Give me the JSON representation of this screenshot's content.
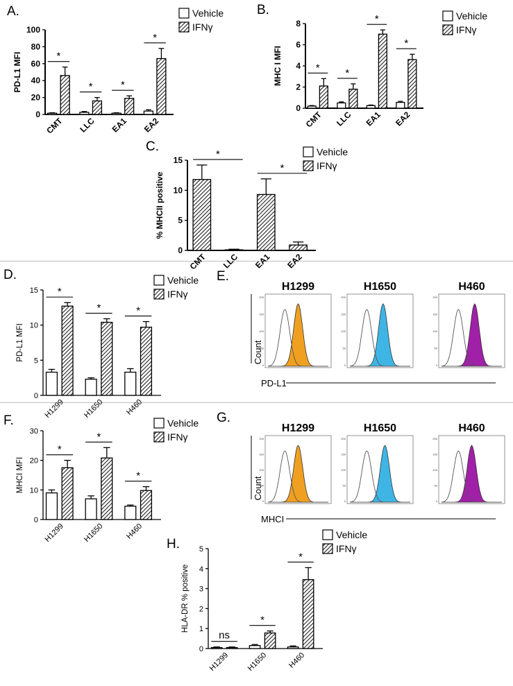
{
  "legend": {
    "vehicle": "Vehicle",
    "ifn": "IFNγ"
  },
  "colors": {
    "orange": "#f0a020",
    "blue": "#3fb5e6",
    "purple": "#a020a8"
  },
  "chart_data": [
    {
      "panel": "A.",
      "type": "bar",
      "style": "bold",
      "categories": [
        "CMT",
        "LLC",
        "EA1",
        "EA2"
      ],
      "series": [
        {
          "name": "Vehicle",
          "values": [
            1.5,
            2.5,
            1.5,
            4
          ],
          "err": [
            0.5,
            1,
            0.5,
            1.5
          ]
        },
        {
          "name": "IFNγ",
          "values": [
            46,
            16,
            19,
            66
          ],
          "err": [
            10,
            4,
            3,
            12
          ]
        }
      ],
      "ylabel": "PD-L1 MFI",
      "ylim": [
        0,
        100
      ],
      "yticks": [
        0,
        20,
        40,
        60,
        80,
        100
      ],
      "sig": [
        {
          "i": 0,
          "label": "*"
        },
        {
          "i": 1,
          "label": "*"
        },
        {
          "i": 2,
          "label": "*"
        },
        {
          "i": 3,
          "label": "*"
        }
      ]
    },
    {
      "panel": "B.",
      "type": "bar",
      "style": "bold",
      "categories": [
        "CMT",
        "LLC",
        "EA1",
        "EA2"
      ],
      "series": [
        {
          "name": "Vehicle",
          "values": [
            0.2,
            0.5,
            0.25,
            0.55
          ],
          "err": [
            0.05,
            0.1,
            0.05,
            0.1
          ]
        },
        {
          "name": "IFNγ",
          "values": [
            2.1,
            1.8,
            7.0,
            4.6
          ],
          "err": [
            0.7,
            0.5,
            0.4,
            0.5
          ]
        }
      ],
      "ylabel": "MHC I MFI",
      "ylim": [
        0,
        8
      ],
      "yticks": [
        0,
        2,
        4,
        6,
        8
      ],
      "sig": [
        {
          "i": 0,
          "label": "*"
        },
        {
          "i": 1,
          "label": "*"
        },
        {
          "i": 2,
          "label": "*"
        },
        {
          "i": 3,
          "label": "*"
        }
      ]
    },
    {
      "panel": "C.",
      "type": "bar",
      "style": "bold",
      "vehicle_only_hatch": true,
      "categories": [
        "CMT",
        "LLC",
        "EA1",
        "EA2"
      ],
      "series": [
        {
          "name": "IFNγ",
          "values": [
            11.8,
            0.1,
            9.3,
            0.9
          ],
          "err": [
            2.4,
            0.1,
            2.6,
            0.5
          ]
        }
      ],
      "ylabel": "% MHCII positive",
      "ylim": [
        0,
        15
      ],
      "yticks": [
        0,
        5,
        10,
        15
      ],
      "sig_pairs": [
        {
          "a": 0,
          "b": 1,
          "label": "*"
        },
        {
          "a": 2,
          "b": 3,
          "label": "*"
        }
      ]
    },
    {
      "panel": "D.",
      "type": "bar",
      "style": "plain",
      "categories": [
        "H1299",
        "H1650",
        "H460"
      ],
      "series": [
        {
          "name": "Vehicle",
          "values": [
            3.3,
            2.3,
            3.3
          ],
          "err": [
            0.4,
            0.2,
            0.5
          ]
        },
        {
          "name": "IFNγ",
          "values": [
            12.7,
            10.4,
            9.7
          ],
          "err": [
            0.5,
            0.5,
            0.8
          ]
        }
      ],
      "ylabel": "PD-L1 MFI",
      "ylim": [
        0,
        15
      ],
      "yticks": [
        0,
        5,
        10,
        15
      ],
      "sig": [
        {
          "i": 0,
          "label": "*"
        },
        {
          "i": 1,
          "label": "*"
        },
        {
          "i": 2,
          "label": "*"
        }
      ]
    },
    {
      "panel": "F.",
      "type": "bar",
      "style": "plain",
      "categories": [
        "H1299",
        "H1650",
        "H460"
      ],
      "series": [
        {
          "name": "Vehicle",
          "values": [
            9,
            7,
            4.5
          ],
          "err": [
            1,
            1,
            0.4
          ]
        },
        {
          "name": "IFNγ",
          "values": [
            17.5,
            20.8,
            9.8
          ],
          "err": [
            2.5,
            3.5,
            1.3
          ]
        }
      ],
      "ylabel": "MHCI MFI",
      "ylim": [
        0,
        30
      ],
      "yticks": [
        0,
        10,
        20,
        30
      ],
      "sig": [
        {
          "i": 0,
          "label": "*"
        },
        {
          "i": 1,
          "label": "*"
        },
        {
          "i": 2,
          "label": "*"
        }
      ]
    },
    {
      "panel": "H.",
      "type": "bar",
      "style": "plain",
      "categories": [
        "H1299",
        "H1650",
        "H460"
      ],
      "series": [
        {
          "name": "Vehicle",
          "values": [
            0.05,
            0.15,
            0.08
          ],
          "err": [
            0.03,
            0.05,
            0.05
          ]
        },
        {
          "name": "IFNγ",
          "values": [
            0.05,
            0.78,
            3.45
          ],
          "err": [
            0.03,
            0.1,
            0.6
          ]
        }
      ],
      "ylabel": "HLA-DR % positive",
      "ylim": [
        0,
        5
      ],
      "yticks": [
        0,
        1,
        2,
        3,
        4,
        5
      ],
      "sig": [
        {
          "i": 0,
          "label": "ns"
        },
        {
          "i": 1,
          "label": "*"
        },
        {
          "i": 2,
          "label": "*"
        }
      ]
    }
  ],
  "flow": [
    {
      "panel": "E.",
      "xlabel": "PD-L1",
      "ylabel": "Count",
      "cells": [
        {
          "name": "H1299",
          "color": "orange"
        },
        {
          "name": "H1650",
          "color": "blue"
        },
        {
          "name": "H460",
          "color": "purple"
        }
      ]
    },
    {
      "panel": "G.",
      "xlabel": "MHCI",
      "ylabel": "Count",
      "cells": [
        {
          "name": "H1299",
          "color": "orange"
        },
        {
          "name": "H1650",
          "color": "blue"
        },
        {
          "name": "H460",
          "color": "purple"
        }
      ]
    }
  ]
}
